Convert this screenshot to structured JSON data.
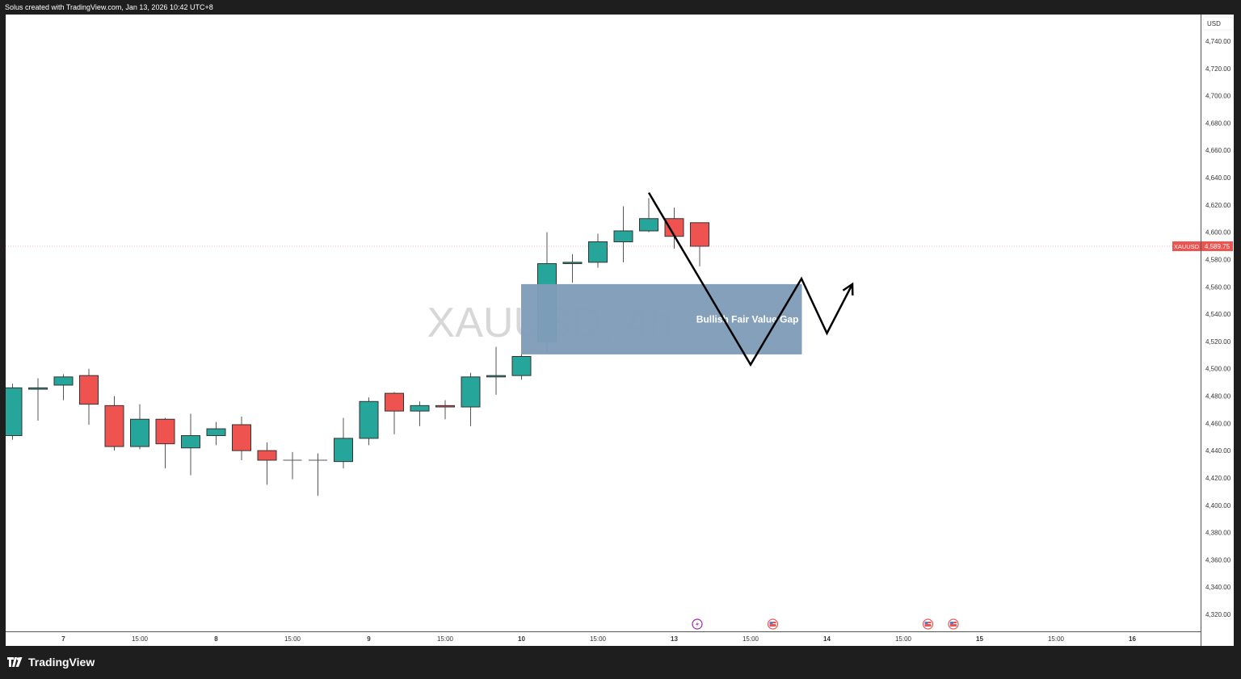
{
  "header": {
    "text": "Solus created with TradingView.com, Jan 13, 2026 10:42 UTC+8"
  },
  "footer": {
    "logo_text": "TradingView"
  },
  "price_axis": {
    "currency": "USD",
    "symbol_label": "XAUUSD",
    "last_price_label": "4,589.75"
  },
  "colors": {
    "up": "#26a69a",
    "down": "#ef5350",
    "fvg": "#7f9cb8",
    "last_price": "#ef5350",
    "drawing": "#000000",
    "event_lightning": "#9c27b0"
  },
  "chart_data": {
    "type": "candlestick",
    "symbol": "XAUUSD",
    "interval": "4h",
    "watermark": "XAUUSD, 4h",
    "ylim": [
      4307,
      4760
    ],
    "last_price": 4589.75,
    "y_ticks": [
      "4,320.00",
      "4,340.00",
      "4,360.00",
      "4,380.00",
      "4,400.00",
      "4,420.00",
      "4,440.00",
      "4,460.00",
      "4,480.00",
      "4,500.00",
      "4,520.00",
      "4,540.00",
      "4,560.00",
      "4,580.00",
      "4,600.00",
      "4,620.00",
      "4,640.00",
      "4,660.00",
      "4,680.00",
      "4,700.00",
      "4,720.00",
      "4,740.00"
    ],
    "x_ticks": [
      {
        "bar": 2,
        "label": "7"
      },
      {
        "bar": 5,
        "label": "15:00"
      },
      {
        "bar": 8,
        "label": "8"
      },
      {
        "bar": 11,
        "label": "15:00"
      },
      {
        "bar": 14,
        "label": "9"
      },
      {
        "bar": 17,
        "label": "15:00"
      },
      {
        "bar": 20,
        "label": "10"
      },
      {
        "bar": 23,
        "label": "15:00"
      },
      {
        "bar": 26,
        "label": "13"
      },
      {
        "bar": 29,
        "label": "15:00"
      },
      {
        "bar": 32,
        "label": "14"
      },
      {
        "bar": 35,
        "label": "15:00"
      },
      {
        "bar": 38,
        "label": "15"
      },
      {
        "bar": 41,
        "label": "15:00"
      },
      {
        "bar": 44,
        "label": "16"
      }
    ],
    "candles": [
      {
        "o": 4451,
        "h": 4489,
        "l": 4448,
        "c": 4486
      },
      {
        "o": 4485,
        "h": 4493,
        "l": 4462,
        "c": 4486
      },
      {
        "o": 4488,
        "h": 4496,
        "l": 4477,
        "c": 4494
      },
      {
        "o": 4495,
        "h": 4500,
        "l": 4459,
        "c": 4474
      },
      {
        "o": 4473,
        "h": 4480,
        "l": 4440,
        "c": 4443
      },
      {
        "o": 4443,
        "h": 4474,
        "l": 4441,
        "c": 4463
      },
      {
        "o": 4463,
        "h": 4464,
        "l": 4427,
        "c": 4445
      },
      {
        "o": 4442,
        "h": 4467,
        "l": 4422,
        "c": 4451
      },
      {
        "o": 4451,
        "h": 4461,
        "l": 4444,
        "c": 4456
      },
      {
        "o": 4459,
        "h": 4465,
        "l": 4433,
        "c": 4440
      },
      {
        "o": 4440,
        "h": 4446,
        "l": 4415,
        "c": 4433
      },
      {
        "o": 4433,
        "h": 4439,
        "l": 4419,
        "c": 4433
      },
      {
        "o": 4433,
        "h": 4438,
        "l": 4407,
        "c": 4433
      },
      {
        "o": 4432,
        "h": 4464,
        "l": 4427,
        "c": 4449
      },
      {
        "o": 4449,
        "h": 4479,
        "l": 4444,
        "c": 4476
      },
      {
        "o": 4482,
        "h": 4483,
        "l": 4452,
        "c": 4469
      },
      {
        "o": 4469,
        "h": 4476,
        "l": 4458,
        "c": 4473
      },
      {
        "o": 4473,
        "h": 4477,
        "l": 4463,
        "c": 4472
      },
      {
        "o": 4472,
        "h": 4497,
        "l": 4458,
        "c": 4494
      },
      {
        "o": 4494,
        "h": 4516,
        "l": 4481,
        "c": 4495
      },
      {
        "o": 4495,
        "h": 4512,
        "l": 4492,
        "c": 4509
      },
      {
        "o": 4520,
        "h": 4600,
        "l": 4512,
        "c": 4577
      },
      {
        "o": 4577,
        "h": 4584,
        "l": 4563,
        "c": 4578
      },
      {
        "o": 4578,
        "h": 4599,
        "l": 4574,
        "c": 4593
      },
      {
        "o": 4593,
        "h": 4619,
        "l": 4578,
        "c": 4601
      },
      {
        "o": 4601,
        "h": 4625,
        "l": 4600,
        "c": 4610
      },
      {
        "o": 4610,
        "h": 4618,
        "l": 4588,
        "c": 4597
      },
      {
        "o": 4607,
        "h": 4607,
        "l": 4575,
        "c": 4589.75
      }
    ],
    "annotations": {
      "fvg": {
        "label": "Bullish Fair Value Gap",
        "bar_from": 20,
        "bar_to": 31,
        "price_low": 4510.5,
        "price_high": 4562
      },
      "path": [
        {
          "bar": 25,
          "price": 4629
        },
        {
          "bar": 29,
          "price": 4503
        },
        {
          "bar": 31,
          "price": 4566
        },
        {
          "bar": 32,
          "price": 4526
        },
        {
          "bar": 33,
          "price": 4562
        }
      ]
    },
    "events": [
      {
        "bar": 27,
        "type": "lightning"
      },
      {
        "bar": 30,
        "type": "us-flag"
      },
      {
        "bar": 36,
        "type": "us-flag"
      },
      {
        "bar": 37,
        "type": "us-flag"
      }
    ]
  }
}
